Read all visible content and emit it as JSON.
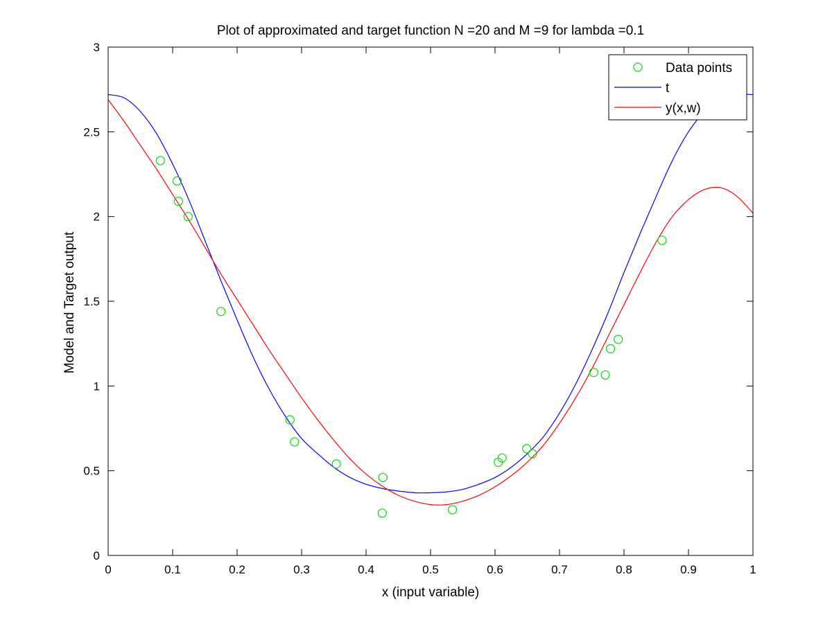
{
  "chart_data": {
    "type": "line",
    "title": "Plot of approximated and target function N =20 and M =9 for lambda =0.1",
    "xlabel": "x (input variable)",
    "ylabel": "Model and Target output",
    "xlim": [
      0,
      1
    ],
    "ylim": [
      0,
      3
    ],
    "x_ticks": [
      0,
      0.1,
      0.2,
      0.3,
      0.4,
      0.5,
      0.6,
      0.7,
      0.8,
      0.9,
      1
    ],
    "x_tick_labels": [
      "0",
      "0.1",
      "0.2",
      "0.3",
      "0.4",
      "0.5",
      "0.6",
      "0.7",
      "0.8",
      "0.9",
      "1"
    ],
    "y_ticks": [
      0,
      0.5,
      1,
      1.5,
      2,
      2.5,
      3
    ],
    "y_tick_labels": [
      "0",
      "0.5",
      "1",
      "1.5",
      "2",
      "2.5",
      "3"
    ],
    "grid": false,
    "legend_position": "top-right",
    "series": [
      {
        "name": "Data points",
        "kind": "scatter",
        "marker": "circle",
        "color": "#00dd00",
        "x": [
          0.081,
          0.107,
          0.109,
          0.124,
          0.175,
          0.282,
          0.289,
          0.354,
          0.425,
          0.426,
          0.534,
          0.605,
          0.611,
          0.649,
          0.658,
          0.753,
          0.771,
          0.779,
          0.791,
          0.859
        ],
        "y": [
          2.33,
          2.21,
          2.09,
          2.0,
          1.44,
          0.8,
          0.67,
          0.54,
          0.25,
          0.46,
          0.27,
          0.55,
          0.575,
          0.63,
          0.6,
          1.08,
          1.065,
          1.22,
          1.275,
          1.86
        ]
      },
      {
        "name": "t",
        "kind": "line",
        "color": "#0000ff",
        "x": [
          0,
          0.025,
          0.05,
          0.075,
          0.1,
          0.125,
          0.15,
          0.175,
          0.2,
          0.225,
          0.25,
          0.275,
          0.3,
          0.325,
          0.35,
          0.375,
          0.4,
          0.425,
          0.45,
          0.475,
          0.5,
          0.525,
          0.55,
          0.575,
          0.6,
          0.625,
          0.65,
          0.675,
          0.7,
          0.725,
          0.75,
          0.775,
          0.8,
          0.825,
          0.85,
          0.875,
          0.9,
          0.925,
          0.95,
          0.975,
          1
        ],
        "y": [
          2.72,
          2.7,
          2.62,
          2.49,
          2.31,
          2.1,
          1.86,
          1.62,
          1.39,
          1.17,
          0.98,
          0.82,
          0.69,
          0.6,
          0.52,
          0.46,
          0.42,
          0.395,
          0.38,
          0.37,
          0.37,
          0.375,
          0.39,
          0.42,
          0.46,
          0.52,
          0.6,
          0.7,
          0.84,
          1.01,
          1.21,
          1.43,
          1.67,
          1.9,
          2.12,
          2.33,
          2.5,
          2.62,
          2.69,
          2.72,
          2.72
        ]
      },
      {
        "name": "y(x,w)",
        "kind": "line",
        "color": "#ff0000",
        "x": [
          0,
          0.025,
          0.05,
          0.075,
          0.1,
          0.125,
          0.15,
          0.175,
          0.2,
          0.225,
          0.25,
          0.275,
          0.3,
          0.325,
          0.35,
          0.375,
          0.4,
          0.425,
          0.45,
          0.475,
          0.5,
          0.525,
          0.55,
          0.575,
          0.6,
          0.625,
          0.65,
          0.675,
          0.7,
          0.725,
          0.75,
          0.775,
          0.8,
          0.825,
          0.85,
          0.875,
          0.9,
          0.925,
          0.95,
          0.975,
          1
        ],
        "y": [
          2.69,
          2.56,
          2.42,
          2.28,
          2.13,
          1.98,
          1.82,
          1.66,
          1.51,
          1.36,
          1.21,
          1.07,
          0.93,
          0.8,
          0.68,
          0.57,
          0.48,
          0.41,
          0.355,
          0.32,
          0.3,
          0.3,
          0.32,
          0.355,
          0.405,
          0.47,
          0.55,
          0.65,
          0.78,
          0.93,
          1.1,
          1.29,
          1.48,
          1.67,
          1.85,
          2.0,
          2.1,
          2.16,
          2.17,
          2.12,
          2.02
        ]
      }
    ]
  }
}
